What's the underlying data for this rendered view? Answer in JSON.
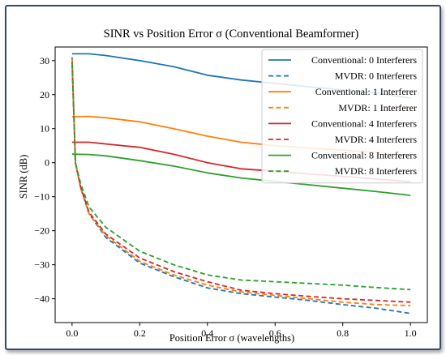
{
  "chart_data": {
    "type": "line",
    "title": "SINR vs Position Error σ (Conventional Beamformer)",
    "xlabel": "Position Error σ (wavelengths)",
    "ylabel": "SINR (dB)",
    "xlim": [
      -0.05,
      1.05
    ],
    "ylim": [
      -47,
      34
    ],
    "xticks": [
      0.0,
      0.2,
      0.4,
      0.6,
      0.8,
      1.0
    ],
    "xtick_labels": [
      "0.0",
      "0.2",
      "0.4",
      "0.6",
      "0.8",
      "1.0"
    ],
    "yticks": [
      -40,
      -30,
      -20,
      -10,
      0,
      10,
      20,
      30
    ],
    "ytick_labels": [
      "−40",
      "−30",
      "−20",
      "−10",
      "0",
      "10",
      "20",
      "30"
    ],
    "grid": false,
    "legend_position": "top-right",
    "series": [
      {
        "name": "Conventional: 0 Interferers",
        "color": "#1f77b4",
        "dash": "solid",
        "x": [
          0.0,
          0.05,
          0.1,
          0.2,
          0.3,
          0.4,
          0.5,
          0.6,
          0.7,
          0.8,
          0.9,
          1.0
        ],
        "y": [
          32.0,
          32.0,
          31.5,
          30.0,
          28.2,
          25.7,
          24.3,
          23.3,
          22.3,
          21.4,
          20.4,
          19.0
        ]
      },
      {
        "name": "MVDR: 0 Interferers",
        "color": "#1f77b4",
        "dash": "dashed",
        "x": [
          0.0,
          0.01,
          0.025,
          0.05,
          0.1,
          0.2,
          0.3,
          0.4,
          0.5,
          0.6,
          0.7,
          0.8,
          0.9,
          1.0
        ],
        "y": [
          31.0,
          0.0,
          -7.0,
          -15.0,
          -22.0,
          -29.5,
          -33.5,
          -36.8,
          -38.5,
          -39.5,
          -40.5,
          -41.7,
          -42.8,
          -44.3
        ]
      },
      {
        "name": "Conventional: 1 Interferer",
        "color": "#ff7f0e",
        "dash": "solid",
        "x": [
          0.0,
          0.05,
          0.1,
          0.2,
          0.3,
          0.4,
          0.5,
          0.6,
          0.7,
          0.8,
          0.9,
          1.0
        ],
        "y": [
          13.5,
          13.6,
          13.2,
          12.0,
          10.0,
          7.8,
          6.0,
          5.0,
          4.3,
          3.7,
          3.0,
          2.0
        ]
      },
      {
        "name": "MVDR: 1 Interferer",
        "color": "#ff7f0e",
        "dash": "dashed",
        "x": [
          0.0,
          0.01,
          0.025,
          0.05,
          0.1,
          0.2,
          0.3,
          0.4,
          0.5,
          0.6,
          0.7,
          0.8,
          0.9,
          1.0
        ],
        "y": [
          30.5,
          0.0,
          -7.5,
          -15.0,
          -21.5,
          -29.0,
          -33.0,
          -36.0,
          -38.0,
          -39.0,
          -40.0,
          -41.0,
          -41.7,
          -42.0
        ]
      },
      {
        "name": "Conventional: 4 Interferers",
        "color": "#d62728",
        "dash": "solid",
        "x": [
          0.0,
          0.05,
          0.1,
          0.2,
          0.3,
          0.4,
          0.5,
          0.6,
          0.7,
          0.8,
          0.9,
          1.0
        ],
        "y": [
          6.0,
          6.0,
          5.5,
          4.5,
          2.5,
          0.0,
          -1.8,
          -2.5,
          -3.3,
          -4.0,
          -4.8,
          -5.6
        ]
      },
      {
        "name": "MVDR: 4 Interferers",
        "color": "#d62728",
        "dash": "dashed",
        "x": [
          0.0,
          0.01,
          0.025,
          0.05,
          0.1,
          0.2,
          0.3,
          0.4,
          0.5,
          0.6,
          0.7,
          0.8,
          0.9,
          1.0
        ],
        "y": [
          29.5,
          0.0,
          -7.0,
          -14.5,
          -21.0,
          -28.0,
          -32.0,
          -35.0,
          -37.5,
          -38.5,
          -39.3,
          -40.0,
          -40.5,
          -41.0
        ]
      },
      {
        "name": "Conventional: 8 Interferers",
        "color": "#2ca02c",
        "dash": "solid",
        "x": [
          0.0,
          0.05,
          0.1,
          0.2,
          0.3,
          0.4,
          0.5,
          0.6,
          0.7,
          0.8,
          0.9,
          1.0
        ],
        "y": [
          2.5,
          2.4,
          2.0,
          0.6,
          -1.0,
          -3.0,
          -4.5,
          -5.5,
          -6.5,
          -7.5,
          -8.5,
          -9.6
        ]
      },
      {
        "name": "MVDR: 8 Interferers",
        "color": "#2ca02c",
        "dash": "dashed",
        "x": [
          0.0,
          0.01,
          0.025,
          0.05,
          0.1,
          0.2,
          0.3,
          0.4,
          0.5,
          0.6,
          0.7,
          0.8,
          0.9,
          1.0
        ],
        "y": [
          29.0,
          0.0,
          -6.0,
          -13.0,
          -19.0,
          -26.0,
          -30.0,
          -33.0,
          -34.5,
          -35.0,
          -35.5,
          -36.0,
          -36.7,
          -37.3
        ]
      }
    ]
  }
}
